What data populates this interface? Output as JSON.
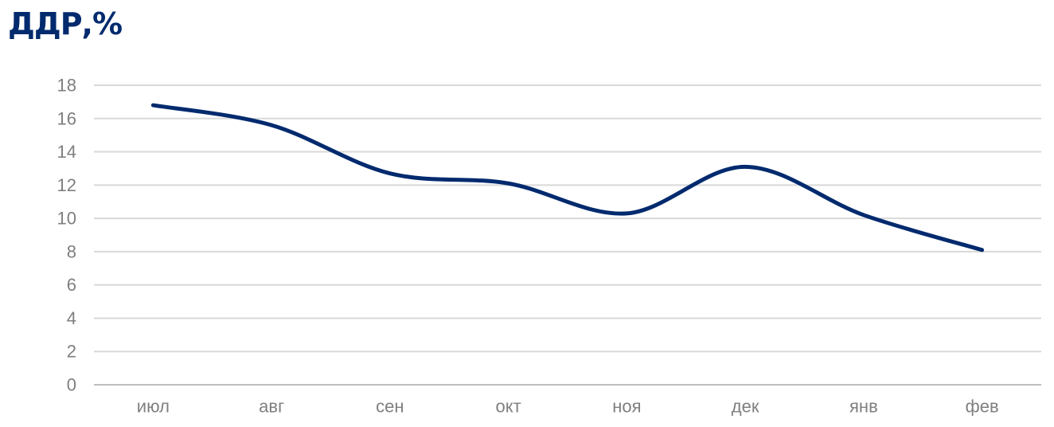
{
  "chart_data": {
    "type": "line",
    "title": "ДДР,%",
    "xlabel": "",
    "ylabel": "",
    "categories": [
      "июл",
      "авг",
      "сен",
      "окт",
      "ноя",
      "дек",
      "янв",
      "фев"
    ],
    "series": [
      {
        "values": [
          16.8,
          15.6,
          12.7,
          12.1,
          10.3,
          13.1,
          10.2,
          8.1
        ],
        "color": "#002a6e"
      }
    ],
    "ylim": [
      0,
      18
    ],
    "yticks": [
      0,
      2,
      4,
      6,
      8,
      10,
      12,
      14,
      16,
      18
    ],
    "grid": true,
    "smooth": true,
    "legend": "none"
  },
  "colors": {
    "title": "#002a6e",
    "gridline": "#d9d9d9",
    "tick_label": "#7f7f7f"
  }
}
